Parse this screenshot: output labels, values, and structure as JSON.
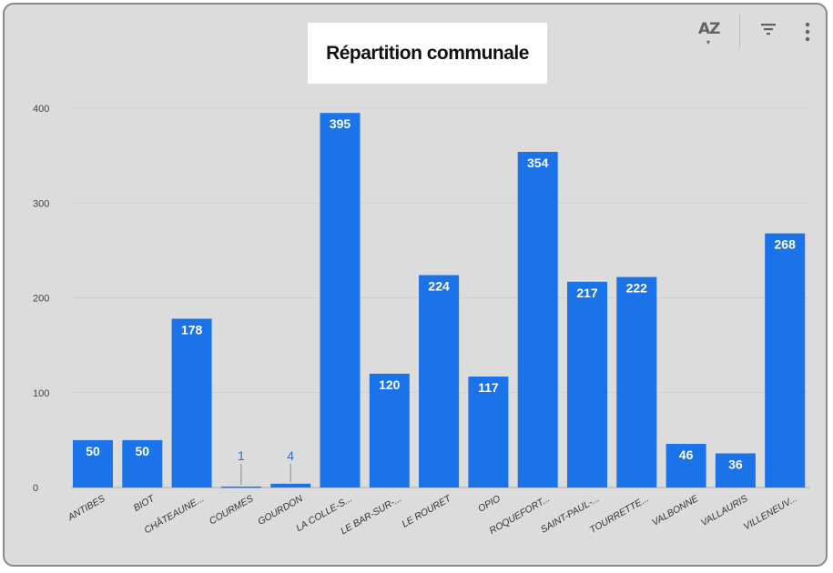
{
  "toolbar": {
    "sort_label": "AZ",
    "filter_icon": "filter-icon",
    "more_icon": "more-vert-icon"
  },
  "colors": {
    "bar": "#1a73e8",
    "card_bg": "#dcdcdc",
    "grid": "#cfcfcf"
  },
  "chart_data": {
    "type": "bar",
    "title": "Répartition communale",
    "categories": [
      "ANTIBES",
      "BIOT",
      "CHÂTEAUNE...",
      "COURMES",
      "GOURDON",
      "LA COLLE-S...",
      "LE BAR-SUR-...",
      "LE ROURET",
      "OPIO",
      "ROQUEFORT...",
      "SAINT-PAUL-...",
      "TOURRETTE...",
      "VALBONNE",
      "VALLAURIS",
      "VILLENEUV..."
    ],
    "values": [
      50,
      50,
      178,
      1,
      4,
      395,
      120,
      224,
      117,
      354,
      217,
      222,
      46,
      36,
      268
    ],
    "yticks": [
      0,
      100,
      200,
      300,
      400
    ],
    "ylim": [
      0,
      400
    ],
    "xlabel": "",
    "ylabel": "",
    "grid": true,
    "legend": "none"
  }
}
